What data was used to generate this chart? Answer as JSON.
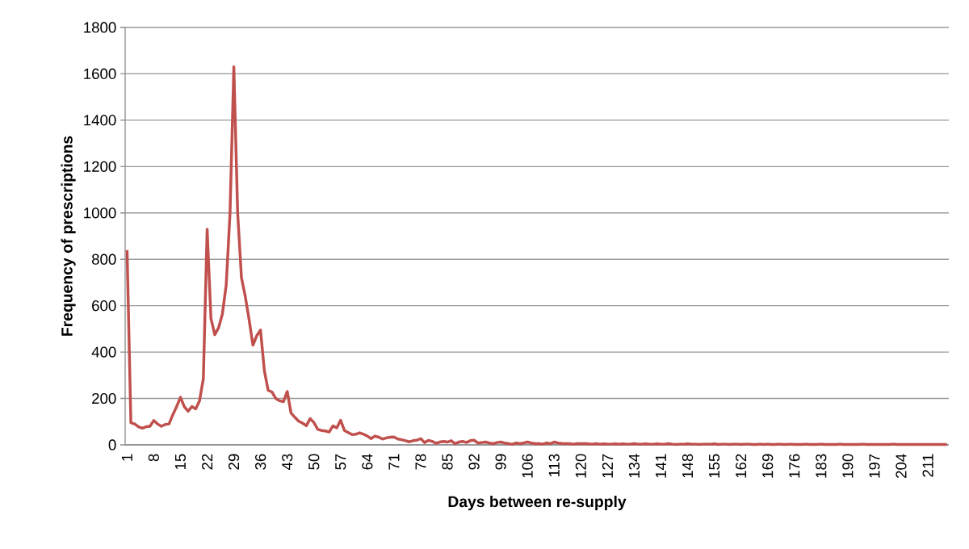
{
  "chart_data": {
    "type": "line",
    "xlabel": "Days between re-supply",
    "ylabel": "Frequency of prescriptions",
    "categories": [
      "1",
      null,
      null,
      null,
      null,
      null,
      null,
      "8",
      null,
      null,
      null,
      null,
      null,
      null,
      "15",
      null,
      null,
      null,
      null,
      null,
      null,
      "22",
      null,
      null,
      null,
      null,
      null,
      null,
      "29",
      null,
      null,
      null,
      null,
      null,
      null,
      "36",
      null,
      null,
      null,
      null,
      null,
      null,
      "43",
      null,
      null,
      null,
      null,
      null,
      null,
      "50",
      null,
      null,
      null,
      null,
      null,
      null,
      "57",
      null,
      null,
      null,
      null,
      null,
      null,
      "64",
      null,
      null,
      null,
      null,
      null,
      null,
      "71",
      null,
      null,
      null,
      null,
      null,
      null,
      "78",
      null,
      null,
      null,
      null,
      null,
      null,
      "85",
      null,
      null,
      null,
      null,
      null,
      null,
      "92",
      null,
      null,
      null,
      null,
      null,
      null,
      "99",
      null,
      null,
      null,
      null,
      null,
      null,
      "106",
      null,
      null,
      null,
      null,
      null,
      null,
      "113",
      null,
      null,
      null,
      null,
      null,
      null,
      "120",
      null,
      null,
      null,
      null,
      null,
      null,
      "127",
      null,
      null,
      null,
      null,
      null,
      null,
      "134",
      null,
      null,
      null,
      null,
      null,
      null,
      "141",
      null,
      null,
      null,
      null,
      null,
      null,
      "148",
      null,
      null,
      null,
      null,
      null,
      null,
      "155",
      null,
      null,
      null,
      null,
      null,
      null,
      "162",
      null,
      null,
      null,
      null,
      null,
      null,
      "169",
      null,
      null,
      null,
      null,
      null,
      null,
      "176",
      null,
      null,
      null,
      null,
      null,
      null,
      "183",
      null,
      null,
      null,
      null,
      null,
      null,
      "190",
      null,
      null,
      null,
      null,
      null,
      null,
      "197",
      null,
      null,
      null,
      null,
      null,
      null,
      "204",
      null,
      null,
      null,
      null,
      null,
      null,
      "211",
      null,
      null,
      null,
      null,
      null
    ],
    "values": [
      840,
      95,
      90,
      78,
      72,
      78,
      80,
      105,
      90,
      80,
      88,
      90,
      130,
      165,
      205,
      165,
      145,
      165,
      155,
      190,
      285,
      930,
      545,
      475,
      505,
      565,
      690,
      1000,
      1630,
      1000,
      720,
      640,
      540,
      430,
      470,
      495,
      320,
      235,
      228,
      200,
      190,
      186,
      230,
      137,
      119,
      102,
      94,
      82,
      113,
      96,
      67,
      62,
      60,
      55,
      82,
      73,
      106,
      62,
      53,
      44,
      46,
      52,
      46,
      38,
      27,
      38,
      33,
      25,
      30,
      33,
      34,
      25,
      22,
      18,
      13,
      18,
      20,
      27,
      10,
      19,
      15,
      7,
      12,
      15,
      12,
      18,
      5,
      12,
      15,
      10,
      18,
      20,
      8,
      10,
      12,
      8,
      5,
      10,
      12,
      8,
      5,
      2,
      8,
      5,
      8,
      12,
      8,
      5,
      5,
      3,
      8,
      5,
      12,
      8,
      6,
      5,
      5,
      3,
      5,
      5,
      5,
      4,
      3,
      5,
      3,
      4,
      3,
      3,
      4,
      3,
      4,
      3,
      3,
      5,
      3,
      3,
      4,
      3,
      3,
      4,
      3,
      3,
      5,
      3,
      2,
      3,
      3,
      4,
      3,
      3,
      2,
      3,
      3,
      3,
      4,
      2,
      3,
      3,
      2,
      3,
      3,
      2,
      3,
      3,
      2,
      2,
      3,
      2,
      3,
      2,
      2,
      3,
      2,
      2,
      3,
      2,
      2,
      2,
      3,
      2,
      2,
      2,
      3,
      2,
      2,
      2,
      2,
      3,
      2,
      2,
      2,
      2,
      2,
      3,
      2,
      2,
      2,
      2,
      2,
      2,
      2,
      3,
      2,
      2,
      2,
      2,
      2,
      2,
      2,
      2,
      2,
      2,
      2,
      2,
      2,
      2
    ],
    "color": "#c0504d",
    "ylim": [
      0,
      1800
    ],
    "yticks": [
      0,
      200,
      400,
      600,
      800,
      1000,
      1200,
      1400,
      1600,
      1800
    ],
    "grid": "y"
  }
}
